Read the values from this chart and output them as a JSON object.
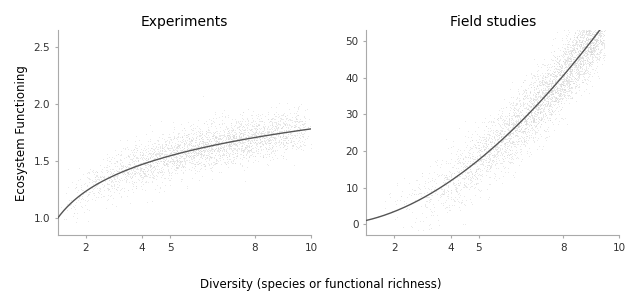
{
  "left_title": "Experiments",
  "right_title": "Field studies",
  "xlabel": "Diversity (species or functional richness)",
  "ylabel": "Ecosystem Functioning",
  "left_xlim": [
    1,
    10
  ],
  "left_ylim": [
    0.85,
    2.65
  ],
  "left_xticks": [
    2,
    4,
    5,
    8,
    10
  ],
  "left_yticks": [
    1.0,
    1.5,
    2.0,
    2.5
  ],
  "right_xlim": [
    1,
    10
  ],
  "right_ylim": [
    -3,
    53
  ],
  "right_xticks": [
    2,
    4,
    5,
    8,
    10
  ],
  "right_yticks": [
    0,
    10,
    20,
    30,
    40,
    50
  ],
  "curve_color": "#555555",
  "scatter_color": "#d0d0d0",
  "bg_color": "#ffffff",
  "title_fontsize": 10,
  "label_fontsize": 8.5,
  "tick_fontsize": 7.5
}
